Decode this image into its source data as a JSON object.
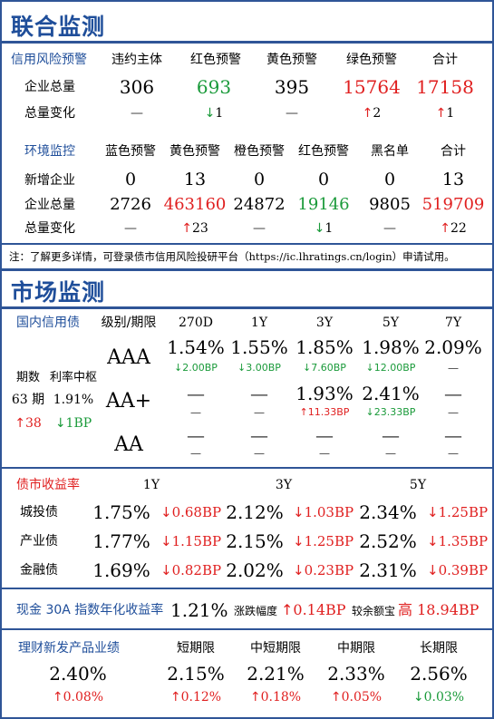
{
  "joint": {
    "title": "联合监测",
    "credit": {
      "label": "信用风险预警",
      "headers": [
        "违约主体",
        "红色预警",
        "黄色预警",
        "绿色预警",
        "合计"
      ],
      "row_total_label": "企业总量",
      "totals": [
        "306",
        "693",
        "395",
        "15764",
        "17158"
      ],
      "row_change_label": "总量变化",
      "changes": [
        {
          "arrow": "",
          "value": "—"
        },
        {
          "arrow": "↓",
          "value": "1"
        },
        {
          "arrow": "",
          "value": "—"
        },
        {
          "arrow": "↑",
          "value": "2"
        },
        {
          "arrow": "↑",
          "value": "1"
        }
      ]
    },
    "env": {
      "label": "环境监控",
      "headers": [
        "蓝色预警",
        "黄色预警",
        "橙色预警",
        "红色预警",
        "黑名单",
        "合计"
      ],
      "row_new_label": "新增企业",
      "new": [
        "0",
        "13",
        "0",
        "0",
        "0",
        "13"
      ],
      "row_total_label": "企业总量",
      "totals": [
        "2726",
        "463160",
        "24872",
        "19146",
        "9805",
        "519709"
      ],
      "row_change_label": "总量变化",
      "changes": [
        {
          "arrow": "",
          "value": "—"
        },
        {
          "arrow": "↑",
          "value": "23"
        },
        {
          "arrow": "",
          "value": "—"
        },
        {
          "arrow": "↓",
          "value": "1"
        },
        {
          "arrow": "",
          "value": "—"
        },
        {
          "arrow": "↑",
          "value": "22"
        }
      ]
    },
    "note": "注：了解更多详情，可登录债市信用风险投研平台（https://ic.lhratings.cn/login）申请试用。"
  },
  "market": {
    "title": "市场监测",
    "domestic": {
      "label": "国内信用债",
      "grade_header": "级别/期限",
      "terms": [
        "270D",
        "1Y",
        "3Y",
        "5Y",
        "7Y"
      ],
      "periods_label": "期数",
      "periods_value": "63 期",
      "periods_change": {
        "arrow": "↑",
        "value": "38"
      },
      "rate_label": "利率中枢",
      "rate_value": "1.91%",
      "rate_change": {
        "arrow": "↓",
        "value": "1BP"
      },
      "grades": [
        {
          "name": "AAA",
          "values": [
            "1.54%",
            "1.55%",
            "1.85%",
            "1.98%",
            "2.09%"
          ],
          "changes": [
            {
              "arrow": "↓",
              "value": "2.00BP"
            },
            {
              "arrow": "↓",
              "value": "3.00BP"
            },
            {
              "arrow": "↓",
              "value": "7.60BP"
            },
            {
              "arrow": "↓",
              "value": "12.00BP"
            },
            {
              "arrow": "",
              "value": "—"
            }
          ]
        },
        {
          "name": "AA+",
          "values": [
            "—",
            "—",
            "1.93%",
            "2.41%",
            "—"
          ],
          "changes": [
            {
              "arrow": "",
              "value": "—"
            },
            {
              "arrow": "",
              "value": "—"
            },
            {
              "arrow": "↑",
              "value": "11.33BP"
            },
            {
              "arrow": "↓",
              "value": "23.33BP"
            },
            {
              "arrow": "",
              "value": "—"
            }
          ]
        },
        {
          "name": "AA",
          "values": [
            "—",
            "—",
            "—",
            "—",
            "—"
          ],
          "changes": [
            {
              "arrow": "",
              "value": "—"
            },
            {
              "arrow": "",
              "value": "—"
            },
            {
              "arrow": "",
              "value": "—"
            },
            {
              "arrow": "",
              "value": "—"
            },
            {
              "arrow": "",
              "value": "—"
            }
          ]
        }
      ]
    },
    "yield": {
      "label": "债市收益率",
      "terms": [
        "1Y",
        "3Y",
        "5Y"
      ],
      "rows": [
        {
          "name": "城投债",
          "cells": [
            {
              "value": "1.75%",
              "arrow": "↓",
              "change": "0.68BP"
            },
            {
              "value": "2.12%",
              "arrow": "↓",
              "change": "1.03BP"
            },
            {
              "value": "2.34%",
              "arrow": "↓",
              "change": "1.25BP"
            }
          ]
        },
        {
          "name": "产业债",
          "cells": [
            {
              "value": "1.77%",
              "arrow": "↓",
              "change": "1.15BP"
            },
            {
              "value": "2.15%",
              "arrow": "↓",
              "change": "1.25BP"
            },
            {
              "value": "2.52%",
              "arrow": "↓",
              "change": "1.35BP"
            }
          ]
        },
        {
          "name": "金融债",
          "cells": [
            {
              "value": "1.69%",
              "arrow": "↓",
              "change": "0.82BP"
            },
            {
              "value": "2.02%",
              "arrow": "↓",
              "change": "0.23BP"
            },
            {
              "value": "2.31%",
              "arrow": "↓",
              "change": "0.39BP"
            }
          ]
        }
      ]
    },
    "cash": {
      "label": "现金 30A 指数年化收益率",
      "value": "1.21%",
      "change_label": "涨跌幅度",
      "change_arrow": "↑",
      "change_value": "0.14BP",
      "compare_label": "较余额宝",
      "compare_word": "高",
      "compare_value": "18.94BP"
    },
    "wealth": {
      "label": "理财新发产品业绩",
      "value": "2.40%",
      "change": {
        "arrow": "↑",
        "value": "0.08%"
      },
      "terms": [
        "短期限",
        "中短期限",
        "中期限",
        "长期限"
      ],
      "values": [
        "2.15%",
        "2.21%",
        "2.33%",
        "2.56%"
      ],
      "changes": [
        {
          "arrow": "↑",
          "value": "0.12%"
        },
        {
          "arrow": "↑",
          "value": "0.18%"
        },
        {
          "arrow": "↑",
          "value": "0.05%"
        },
        {
          "arrow": "↓",
          "value": "0.03%"
        }
      ]
    }
  },
  "colors": {
    "accent": "#1f4e9a",
    "up": "#e02020",
    "down": "#1a9a3a"
  }
}
